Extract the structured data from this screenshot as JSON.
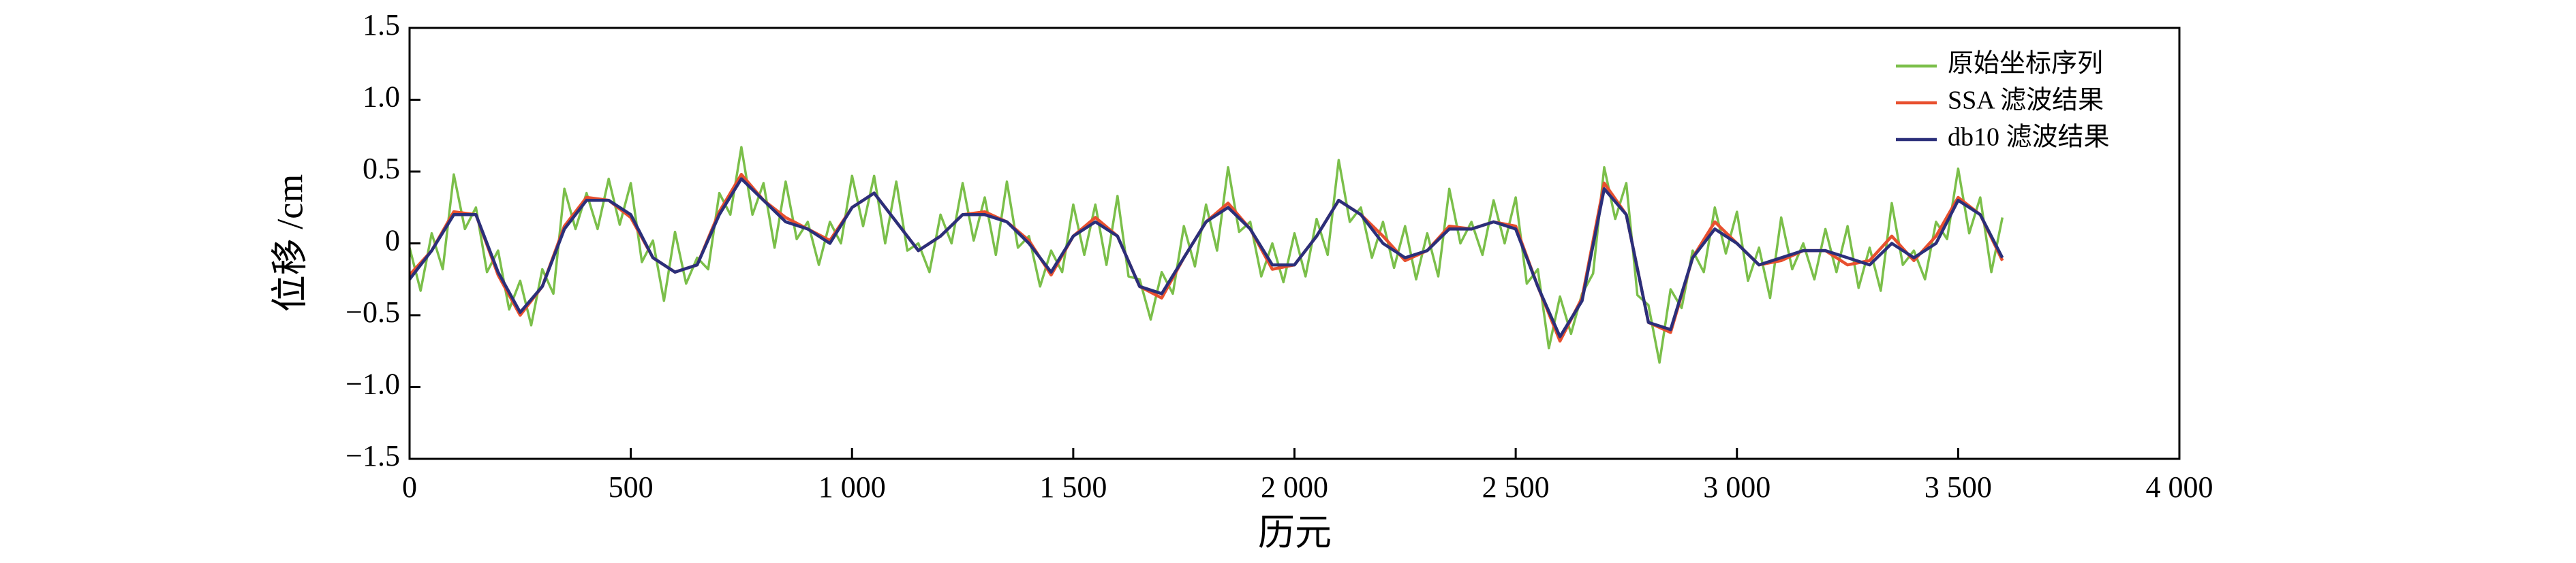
{
  "chart_data": {
    "type": "line",
    "xlabel": "历元",
    "ylabel": "位移 /cm",
    "xlim": [
      0,
      4000
    ],
    "xticks": [
      0,
      500,
      {
        "value": 1000,
        "label": "1 000"
      },
      {
        "value": 1500,
        "label": "1 500"
      },
      {
        "value": 2000,
        "label": "2 000"
      },
      {
        "value": 2500,
        "label": "2 500"
      },
      {
        "value": 3000,
        "label": "3 000"
      },
      {
        "value": 3500,
        "label": "3 500"
      },
      {
        "value": 4000,
        "label": "4 000"
      }
    ],
    "ylim": [
      -1.5,
      1.5
    ],
    "yticks": [
      {
        "value": -1.5,
        "label": "−1.5"
      },
      {
        "value": -1.0,
        "label": "−1.0"
      },
      {
        "value": -0.5,
        "label": "−0.5"
      },
      0,
      0.5,
      {
        "value": 1.0,
        "label": "1.0"
      },
      1.5
    ],
    "legend": "upper right",
    "series": [
      {
        "name": "原始坐标序列",
        "color": "#7bbf4a",
        "x": [
          0,
          25,
          50,
          75,
          100,
          125,
          150,
          175,
          200,
          225,
          250,
          275,
          300,
          325,
          350,
          375,
          400,
          425,
          450,
          475,
          500,
          525,
          550,
          575,
          600,
          625,
          650,
          675,
          700,
          725,
          750,
          775,
          800,
          825,
          850,
          875,
          900,
          925,
          950,
          975,
          1000,
          1025,
          1050,
          1075,
          1100,
          1125,
          1150,
          1175,
          1200,
          1225,
          1250,
          1275,
          1300,
          1325,
          1350,
          1375,
          1400,
          1425,
          1450,
          1475,
          1500,
          1525,
          1550,
          1575,
          1600,
          1625,
          1650,
          1675,
          1700,
          1725,
          1750,
          1775,
          1800,
          1825,
          1850,
          1875,
          1900,
          1925,
          1950,
          1975,
          2000,
          2025,
          2050,
          2075,
          2100,
          2125,
          2150,
          2175,
          2200,
          2225,
          2250,
          2275,
          2300,
          2325,
          2350,
          2375,
          2400,
          2425,
          2450,
          2475,
          2500,
          2525,
          2550,
          2575,
          2600,
          2625,
          2650,
          2675,
          2700,
          2725,
          2750,
          2775,
          2800,
          2825,
          2850,
          2875,
          2900,
          2925,
          2950,
          2975,
          3000,
          3025,
          3050,
          3075,
          3100,
          3125,
          3150,
          3175,
          3200,
          3225,
          3250,
          3275,
          3300,
          3325,
          3350,
          3375,
          3400,
          3425,
          3450,
          3475,
          3500,
          3525,
          3550,
          3575,
          3600
        ],
        "values": [
          -0.03,
          -0.33,
          0.07,
          -0.18,
          0.48,
          0.1,
          0.25,
          -0.2,
          -0.05,
          -0.46,
          -0.26,
          -0.57,
          -0.18,
          -0.35,
          0.38,
          0.1,
          0.35,
          0.1,
          0.45,
          0.13,
          0.42,
          -0.13,
          0.02,
          -0.4,
          0.08,
          -0.28,
          -0.1,
          -0.18,
          0.35,
          0.2,
          0.67,
          0.2,
          0.42,
          -0.03,
          0.43,
          0.03,
          0.15,
          -0.15,
          0.15,
          0.0,
          0.47,
          0.12,
          0.47,
          0.0,
          0.43,
          -0.05,
          0.0,
          -0.2,
          0.2,
          0.0,
          0.42,
          0.02,
          0.32,
          -0.08,
          0.43,
          -0.03,
          0.05,
          -0.3,
          -0.05,
          -0.2,
          0.27,
          -0.08,
          0.27,
          -0.15,
          0.33,
          -0.23,
          -0.25,
          -0.53,
          -0.2,
          -0.35,
          0.12,
          -0.16,
          0.27,
          -0.05,
          0.53,
          0.08,
          0.15,
          -0.23,
          0.0,
          -0.27,
          0.07,
          -0.23,
          0.17,
          -0.08,
          0.58,
          0.15,
          0.25,
          -0.1,
          0.15,
          -0.17,
          0.12,
          -0.25,
          0.07,
          -0.23,
          0.38,
          0.0,
          0.15,
          -0.08,
          0.3,
          0.0,
          0.32,
          -0.28,
          -0.18,
          -0.73,
          -0.37,
          -0.63,
          -0.35,
          -0.21,
          0.53,
          0.17,
          0.42,
          -0.36,
          -0.43,
          -0.83,
          -0.32,
          -0.45,
          -0.05,
          -0.2,
          0.25,
          -0.07,
          0.22,
          -0.26,
          -0.03,
          -0.38,
          0.18,
          -0.18,
          0.0,
          -0.25,
          0.1,
          -0.2,
          0.12,
          -0.31,
          -0.03,
          -0.33,
          0.28,
          -0.15,
          -0.05,
          -0.25,
          0.15,
          0.03,
          0.52,
          0.07,
          0.32,
          -0.2,
          0.18
        ]
      },
      {
        "name": "SSA 滤波结果",
        "color": "#e8502f",
        "x": [
          0,
          50,
          100,
          150,
          200,
          250,
          300,
          350,
          400,
          450,
          500,
          550,
          600,
          650,
          700,
          750,
          800,
          850,
          900,
          950,
          1000,
          1050,
          1100,
          1150,
          1200,
          1250,
          1300,
          1350,
          1400,
          1450,
          1500,
          1550,
          1600,
          1650,
          1700,
          1750,
          1800,
          1850,
          1900,
          1950,
          2000,
          2050,
          2100,
          2150,
          2200,
          2250,
          2300,
          2350,
          2400,
          2450,
          2500,
          2550,
          2600,
          2650,
          2700,
          2750,
          2800,
          2850,
          2900,
          2950,
          3000,
          3050,
          3100,
          3150,
          3200,
          3250,
          3300,
          3350,
          3400,
          3450,
          3500,
          3550,
          3600
        ],
        "values": [
          -0.22,
          -0.05,
          0.22,
          0.2,
          -0.22,
          -0.5,
          -0.3,
          0.12,
          0.32,
          0.3,
          0.18,
          -0.1,
          -0.2,
          -0.15,
          0.22,
          0.48,
          0.3,
          0.18,
          0.1,
          0.02,
          0.25,
          0.35,
          0.15,
          -0.05,
          0.05,
          0.2,
          0.22,
          0.15,
          0.02,
          -0.22,
          0.05,
          0.18,
          0.05,
          -0.3,
          -0.38,
          -0.1,
          0.15,
          0.28,
          0.1,
          -0.18,
          -0.15,
          0.05,
          0.3,
          0.2,
          0.05,
          -0.12,
          -0.05,
          0.12,
          0.1,
          0.15,
          0.12,
          -0.3,
          -0.68,
          -0.38,
          0.42,
          0.2,
          -0.55,
          -0.62,
          -0.1,
          0.15,
          0.0,
          -0.15,
          -0.12,
          -0.05,
          -0.05,
          -0.15,
          -0.12,
          0.05,
          -0.12,
          0.05,
          0.32,
          0.2,
          -0.12
        ]
      },
      {
        "name": "db10 滤波结果",
        "color": "#2b2f7a",
        "x": [
          0,
          50,
          100,
          150,
          200,
          250,
          300,
          350,
          400,
          450,
          500,
          550,
          600,
          650,
          700,
          750,
          800,
          850,
          900,
          950,
          1000,
          1050,
          1100,
          1150,
          1200,
          1250,
          1300,
          1350,
          1400,
          1450,
          1500,
          1550,
          1600,
          1650,
          1700,
          1750,
          1800,
          1850,
          1900,
          1950,
          2000,
          2050,
          2100,
          2150,
          2200,
          2250,
          2300,
          2350,
          2400,
          2450,
          2500,
          2550,
          2600,
          2650,
          2700,
          2750,
          2800,
          2850,
          2900,
          2950,
          3000,
          3050,
          3100,
          3150,
          3200,
          3250,
          3300,
          3350,
          3400,
          3450,
          3500,
          3550,
          3600
        ],
        "values": [
          -0.25,
          -0.05,
          0.2,
          0.2,
          -0.2,
          -0.48,
          -0.3,
          0.1,
          0.3,
          0.3,
          0.2,
          -0.1,
          -0.2,
          -0.15,
          0.2,
          0.45,
          0.3,
          0.15,
          0.1,
          0.0,
          0.25,
          0.35,
          0.15,
          -0.05,
          0.05,
          0.2,
          0.2,
          0.15,
          0.0,
          -0.2,
          0.05,
          0.15,
          0.05,
          -0.3,
          -0.35,
          -0.1,
          0.15,
          0.25,
          0.1,
          -0.15,
          -0.15,
          0.05,
          0.3,
          0.2,
          0.0,
          -0.1,
          -0.05,
          0.1,
          0.1,
          0.15,
          0.1,
          -0.3,
          -0.65,
          -0.4,
          0.38,
          0.2,
          -0.55,
          -0.6,
          -0.1,
          0.1,
          0.0,
          -0.15,
          -0.1,
          -0.05,
          -0.05,
          -0.1,
          -0.15,
          0.0,
          -0.1,
          0.0,
          0.3,
          0.2,
          -0.1
        ]
      }
    ]
  }
}
